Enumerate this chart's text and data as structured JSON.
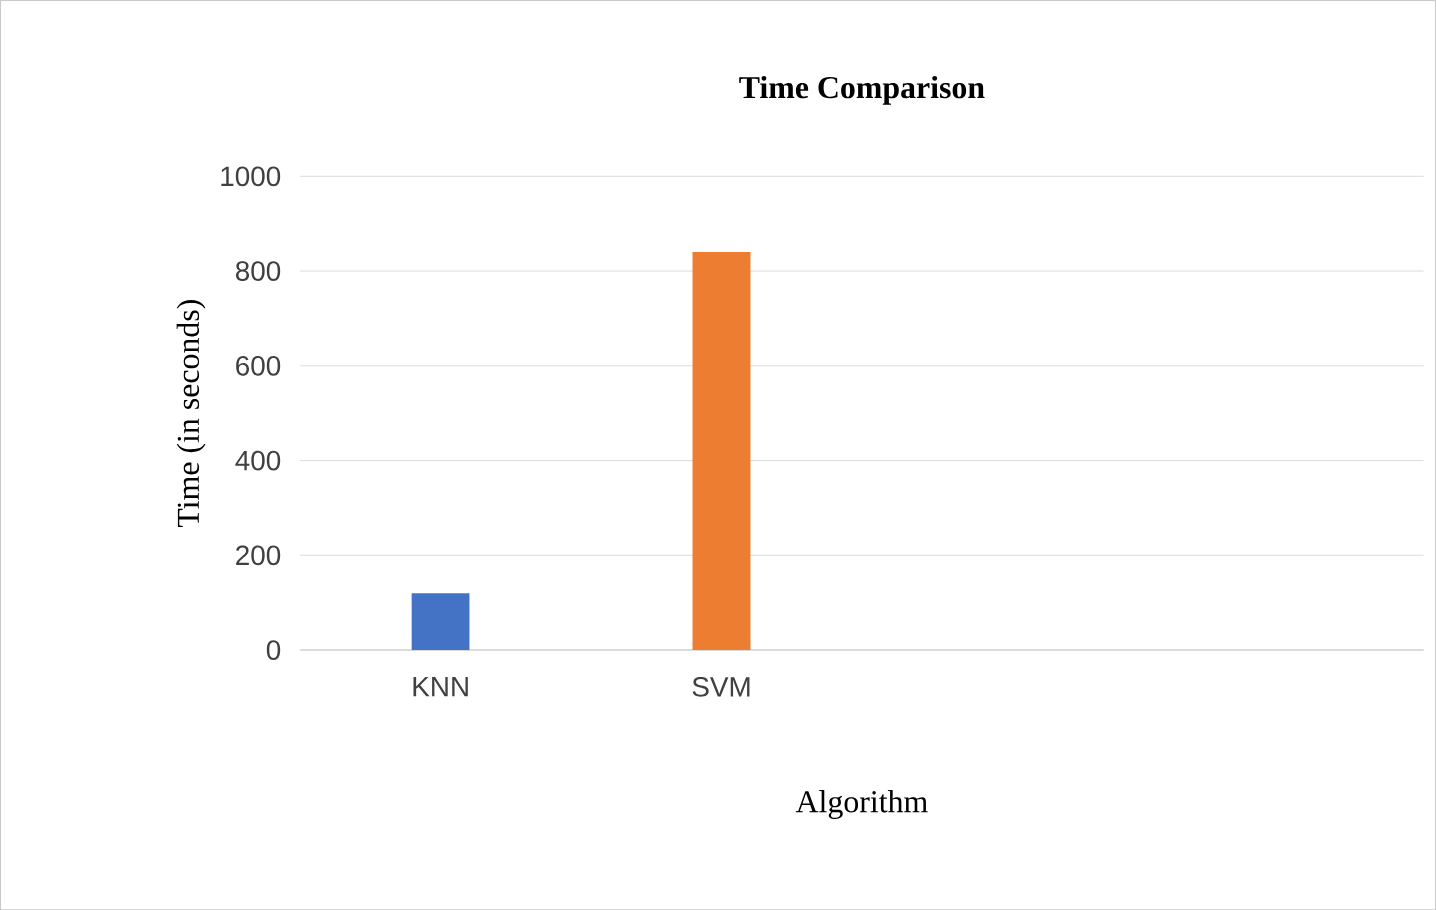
{
  "chart_data": {
    "type": "bar",
    "title": "Time Comparison",
    "xlabel": "Algorithm",
    "ylabel": "Time (in seconds)",
    "categories": [
      "KNN",
      "SVM",
      null,
      null
    ],
    "values": [
      120,
      840,
      null,
      null
    ],
    "colors": [
      "#4472c4",
      "#ed7d31",
      null,
      null
    ],
    "ylim": [
      0,
      1000
    ],
    "yticks": [
      0,
      200,
      400,
      600,
      800,
      1000
    ],
    "grid": "y"
  }
}
